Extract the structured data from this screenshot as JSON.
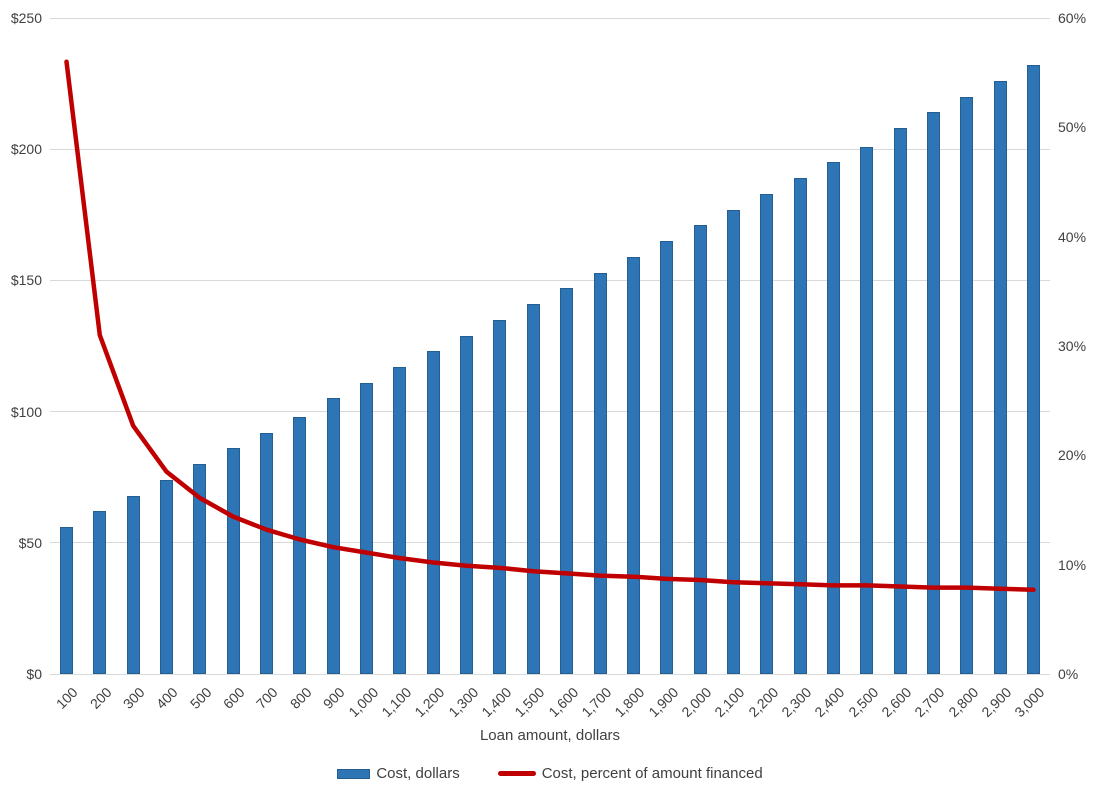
{
  "chart_data": {
    "type": "bar+line",
    "title": "",
    "xlabel": "Loan amount, dollars",
    "categories": [
      "100",
      "200",
      "300",
      "400",
      "500",
      "600",
      "700",
      "800",
      "900",
      "1,000",
      "1,100",
      "1,200",
      "1,300",
      "1,400",
      "1,500",
      "1,600",
      "1,700",
      "1,800",
      "1,900",
      "2,000",
      "2,100",
      "2,200",
      "2,300",
      "2,400",
      "2,500",
      "2,600",
      "2,700",
      "2,800",
      "2,900",
      "3,000"
    ],
    "series": [
      {
        "name": "Cost, dollars",
        "type": "bar",
        "axis": "left",
        "color": "#2e75b6",
        "values": [
          56,
          62,
          68,
          74,
          80,
          86,
          92,
          98,
          105,
          111,
          117,
          123,
          129,
          135,
          141,
          147,
          153,
          159,
          165,
          171,
          177,
          183,
          189,
          195,
          201,
          208,
          214,
          220,
          226,
          232
        ]
      },
      {
        "name": "Cost, percent of amount financed",
        "type": "line",
        "axis": "right",
        "color": "#c00000",
        "values": [
          56.0,
          31.0,
          22.7,
          18.5,
          16.1,
          14.4,
          13.2,
          12.3,
          11.6,
          11.1,
          10.6,
          10.2,
          9.9,
          9.7,
          9.4,
          9.2,
          9.0,
          8.9,
          8.7,
          8.6,
          8.4,
          8.3,
          8.2,
          8.1,
          8.1,
          8.0,
          7.9,
          7.9,
          7.8,
          7.7
        ]
      }
    ],
    "left_axis": {
      "min": 0,
      "max": 250,
      "step": 50,
      "ticks": [
        "$0",
        "$50",
        "$100",
        "$150",
        "$200",
        "$250"
      ]
    },
    "right_axis": {
      "min": 0,
      "max": 60,
      "step": 10,
      "ticks": [
        "0%",
        "10%",
        "20%",
        "30%",
        "40%",
        "50%",
        "60%"
      ]
    },
    "grid": "horizontal-left-axis",
    "legend_position": "bottom",
    "colors": {
      "grid": "#d9d9d9",
      "text": "#404040",
      "background": "#ffffff"
    }
  }
}
